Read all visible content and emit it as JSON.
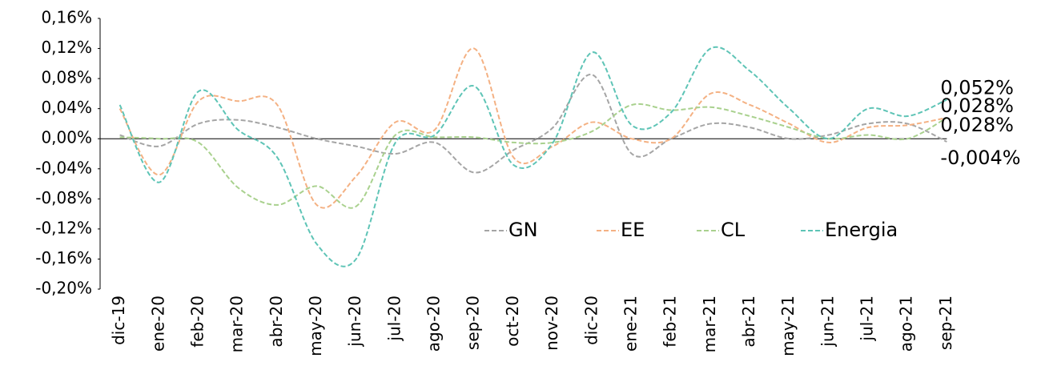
{
  "chart_data": {
    "type": "line",
    "categories": [
      "dic-19",
      "ene-20",
      "feb-20",
      "mar-20",
      "abr-20",
      "may-20",
      "jun-20",
      "jul-20",
      "ago-20",
      "sep-20",
      "oct-20",
      "nov-20",
      "dic-20",
      "ene-21",
      "feb-21",
      "mar-21",
      "abr-21",
      "may-21",
      "jun-21",
      "jul-21",
      "ago-21",
      "sep-21"
    ],
    "series": [
      {
        "name": "GN",
        "color": "#a5a5a5",
        "label_color": "#7f7f7f",
        "values": [
          0.005,
          -0.01,
          0.02,
          0.025,
          0.015,
          0.0,
          -0.01,
          -0.02,
          -0.005,
          -0.045,
          -0.015,
          0.015,
          0.085,
          -0.02,
          0.0,
          0.02,
          0.015,
          0.0,
          0.005,
          0.02,
          0.02,
          -0.004
        ],
        "value_labels": [
          null,
          null,
          null,
          null,
          null,
          null,
          null,
          null,
          null,
          null,
          null,
          null,
          null,
          null,
          null,
          null,
          null,
          null,
          null,
          null,
          null,
          "-0,004%"
        ]
      },
      {
        "name": "EE",
        "color": "#f4b183",
        "label_color": "#ed7d31",
        "values": [
          0.04,
          -0.048,
          0.05,
          0.05,
          0.045,
          -0.088,
          -0.05,
          0.022,
          0.012,
          0.12,
          -0.025,
          -0.01,
          0.022,
          0.0,
          0.0,
          0.06,
          0.045,
          0.02,
          -0.005,
          0.015,
          0.018,
          0.028
        ],
        "value_labels": [
          null,
          null,
          null,
          null,
          null,
          null,
          null,
          null,
          null,
          null,
          null,
          null,
          null,
          null,
          null,
          null,
          null,
          null,
          null,
          null,
          null,
          "0,028%"
        ]
      },
      {
        "name": "CL",
        "color": "#a9d18e",
        "label_color": "#a9d18e",
        "values": [
          0.002,
          0.0,
          -0.005,
          -0.065,
          -0.088,
          -0.063,
          -0.09,
          0.005,
          0.002,
          0.002,
          -0.005,
          -0.005,
          0.01,
          0.045,
          0.038,
          0.042,
          0.03,
          0.015,
          0.0,
          0.005,
          0.0,
          0.028
        ],
        "value_labels": [
          null,
          null,
          null,
          null,
          null,
          null,
          null,
          null,
          null,
          null,
          null,
          null,
          null,
          null,
          null,
          null,
          null,
          null,
          null,
          null,
          null,
          "0,028%"
        ]
      },
      {
        "name": "Energia",
        "color": "#5ec4b6",
        "label_color": "#4bbfb0",
        "values": [
          0.045,
          -0.058,
          0.063,
          0.012,
          -0.025,
          -0.14,
          -0.16,
          -0.005,
          0.005,
          0.07,
          -0.035,
          -0.005,
          0.115,
          0.018,
          0.035,
          0.12,
          0.09,
          0.04,
          0.0,
          0.04,
          0.03,
          0.052
        ],
        "value_labels": [
          null,
          null,
          null,
          null,
          null,
          null,
          null,
          null,
          null,
          null,
          null,
          null,
          null,
          null,
          null,
          null,
          null,
          null,
          null,
          null,
          null,
          "0,052%"
        ]
      }
    ],
    "ylim": [
      -0.2,
      0.16
    ],
    "yticks": [
      {
        "value": 0.16,
        "label": "0,16%"
      },
      {
        "value": 0.12,
        "label": "0,12%"
      },
      {
        "value": 0.08,
        "label": "0,08%"
      },
      {
        "value": 0.04,
        "label": "0,04%"
      },
      {
        "value": 0,
        "label": "0,00%"
      },
      {
        "value": -0.04,
        "label": "-0,04%"
      },
      {
        "value": -0.08,
        "label": "-0,08%"
      },
      {
        "value": -0.12,
        "label": "-0,12%"
      },
      {
        "value": -0.16,
        "label": "-0,16%"
      },
      {
        "value": -0.2,
        "label": "-0,20%"
      }
    ],
    "grid": false,
    "legend": "lower right",
    "line_style": "dashed",
    "smooth": true
  }
}
